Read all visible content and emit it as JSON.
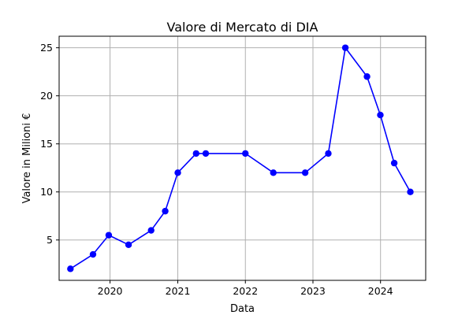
{
  "chart_data": {
    "type": "line",
    "title": "Valore di Mercato di DIA",
    "xlabel": "Data",
    "ylabel": "Valore in Milioni €",
    "x_type": "date",
    "xlim": [
      "2019-04-01",
      "2024-09-01"
    ],
    "ylim": [
      0.8,
      26.2
    ],
    "x_ticks": [
      {
        "date": "2020-01-01",
        "label": "2020"
      },
      {
        "date": "2021-01-01",
        "label": "2021"
      },
      {
        "date": "2022-01-01",
        "label": "2022"
      },
      {
        "date": "2023-01-01",
        "label": "2023"
      },
      {
        "date": "2024-01-01",
        "label": "2024"
      }
    ],
    "y_ticks": [
      {
        "value": 5,
        "label": "5"
      },
      {
        "value": 10,
        "label": "10"
      },
      {
        "value": 15,
        "label": "15"
      },
      {
        "value": 20,
        "label": "20"
      },
      {
        "value": 25,
        "label": "25"
      }
    ],
    "grid": true,
    "series": [
      {
        "color": "#0000ff",
        "marker": "circle",
        "points": [
          {
            "x": "2019-06-01",
            "y": 2
          },
          {
            "x": "2019-10-01",
            "y": 3.5
          },
          {
            "x": "2019-12-25",
            "y": 5.5
          },
          {
            "x": "2020-04-10",
            "y": 4.5
          },
          {
            "x": "2020-08-10",
            "y": 6
          },
          {
            "x": "2020-10-25",
            "y": 8
          },
          {
            "x": "2021-01-01",
            "y": 12
          },
          {
            "x": "2021-04-10",
            "y": 14
          },
          {
            "x": "2021-06-01",
            "y": 14
          },
          {
            "x": "2022-01-01",
            "y": 14
          },
          {
            "x": "2022-06-01",
            "y": 12
          },
          {
            "x": "2022-11-20",
            "y": 12
          },
          {
            "x": "2023-03-25",
            "y": 14
          },
          {
            "x": "2023-06-25",
            "y": 25
          },
          {
            "x": "2023-10-20",
            "y": 22
          },
          {
            "x": "2023-12-31",
            "y": 18
          },
          {
            "x": "2024-03-15",
            "y": 13
          },
          {
            "x": "2024-06-10",
            "y": 10
          }
        ]
      }
    ]
  }
}
